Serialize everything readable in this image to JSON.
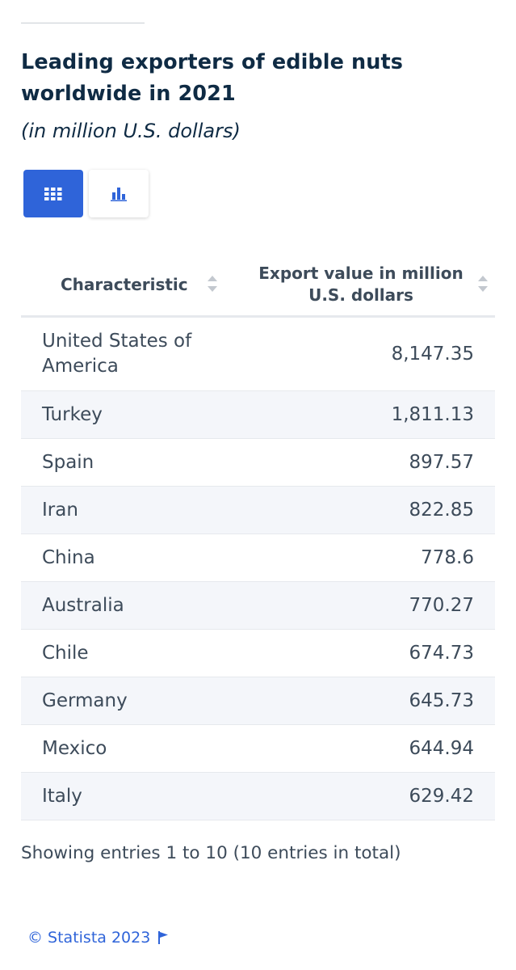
{
  "title": "Leading exporters of edible nuts worldwide in 2021",
  "subtitle": "(in million U.S. dollars)",
  "toggle": {
    "active": "table-view",
    "inactive": "chart-view"
  },
  "colors": {
    "accent": "#2f64d9",
    "text": "#0f2b44",
    "row_alt": "#f4f6fa"
  },
  "chart_data": {
    "type": "table",
    "columns": [
      "Characteristic",
      "Export value in million U.S. dollars"
    ],
    "rows": [
      {
        "name": "United States of America",
        "value": "8,147.35"
      },
      {
        "name": "Turkey",
        "value": "1,811.13"
      },
      {
        "name": "Spain",
        "value": "897.57"
      },
      {
        "name": "Iran",
        "value": "822.85"
      },
      {
        "name": "China",
        "value": "778.6"
      },
      {
        "name": "Australia",
        "value": "770.27"
      },
      {
        "name": "Chile",
        "value": "674.73"
      },
      {
        "name": "Germany",
        "value": "645.73"
      },
      {
        "name": "Mexico",
        "value": "644.94"
      },
      {
        "name": "Italy",
        "value": "629.42"
      }
    ]
  },
  "footer": {
    "entries": "Showing entries 1 to 10 (10 entries in total)"
  },
  "credit": {
    "label": "© Statista 2023"
  }
}
